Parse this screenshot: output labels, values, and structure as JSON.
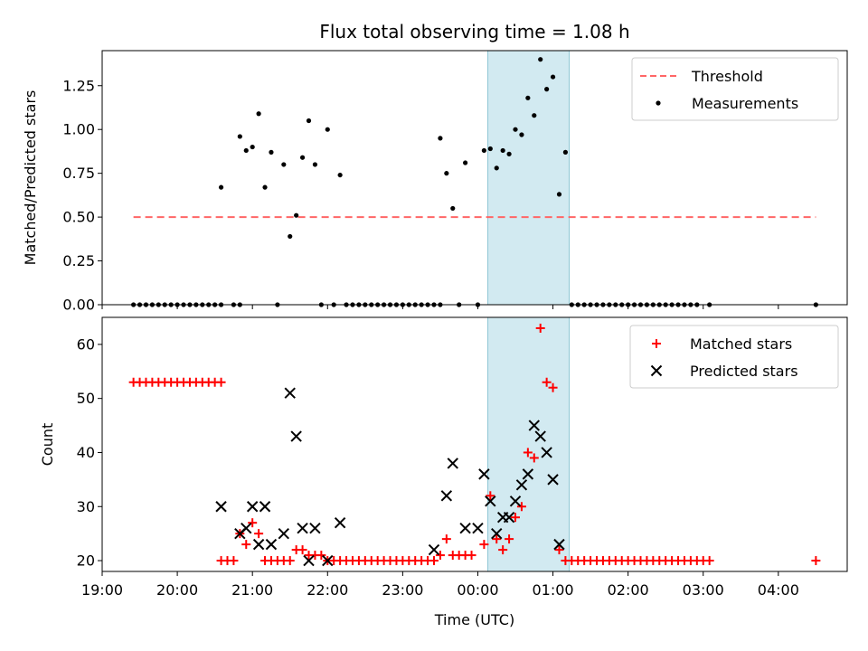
{
  "chart_data": [
    {
      "type": "scatter",
      "title": "Flux total observing time = 1.08 h",
      "xlabel": "",
      "ylabel": "Matched/Predicted stars",
      "xlim": [
        "19:00",
        "04:55"
      ],
      "ylim": [
        0,
        1.45
      ],
      "yticks": [
        "0.00",
        "0.25",
        "0.50",
        "0.75",
        "1.00",
        "1.25"
      ],
      "highlight_span": {
        "x0": "00:08",
        "x1": "01:13",
        "color": "#add8e6"
      },
      "legend": {
        "position": "top-right",
        "entries": [
          "Threshold",
          "Measurements"
        ]
      },
      "threshold": {
        "name": "Threshold",
        "y": 0.5,
        "x0": "19:25",
        "x1": "04:30",
        "color": "#ff6666",
        "style": "dashed"
      },
      "series": [
        {
          "name": "Measurements",
          "marker": "dot",
          "color": "#000000",
          "points": [
            [
              "19:25",
              0
            ],
            [
              "19:30",
              0
            ],
            [
              "19:35",
              0
            ],
            [
              "19:40",
              0
            ],
            [
              "19:45",
              0
            ],
            [
              "19:50",
              0
            ],
            [
              "19:55",
              0
            ],
            [
              "20:00",
              0
            ],
            [
              "20:05",
              0
            ],
            [
              "20:10",
              0
            ],
            [
              "20:15",
              0
            ],
            [
              "20:20",
              0
            ],
            [
              "20:25",
              0
            ],
            [
              "20:30",
              0
            ],
            [
              "20:35",
              0
            ],
            [
              "20:35",
              0.67
            ],
            [
              "20:45",
              0
            ],
            [
              "20:50",
              0
            ],
            [
              "20:50",
              0.96
            ],
            [
              "20:55",
              0.88
            ],
            [
              "21:00",
              0.9
            ],
            [
              "21:05",
              1.09
            ],
            [
              "21:10",
              0.67
            ],
            [
              "21:15",
              0.87
            ],
            [
              "21:20",
              0
            ],
            [
              "21:25",
              0.8
            ],
            [
              "21:30",
              0.39
            ],
            [
              "21:35",
              0.51
            ],
            [
              "21:40",
              0.84
            ],
            [
              "21:45",
              1.05
            ],
            [
              "21:50",
              0.8
            ],
            [
              "21:55",
              0
            ],
            [
              "22:00",
              1.0
            ],
            [
              "22:05",
              0
            ],
            [
              "22:10",
              0.74
            ],
            [
              "22:15",
              0
            ],
            [
              "22:20",
              0
            ],
            [
              "22:25",
              0
            ],
            [
              "22:30",
              0
            ],
            [
              "22:35",
              0
            ],
            [
              "22:40",
              0
            ],
            [
              "22:45",
              0
            ],
            [
              "22:50",
              0
            ],
            [
              "22:55",
              0
            ],
            [
              "23:00",
              0
            ],
            [
              "23:05",
              0
            ],
            [
              "23:10",
              0
            ],
            [
              "23:15",
              0
            ],
            [
              "23:20",
              0
            ],
            [
              "23:25",
              0
            ],
            [
              "23:30",
              0
            ],
            [
              "23:30",
              0.95
            ],
            [
              "23:35",
              0.75
            ],
            [
              "23:40",
              0.55
            ],
            [
              "23:45",
              0
            ],
            [
              "23:50",
              0.81
            ],
            [
              "24:00",
              0
            ],
            [
              "24:05",
              0.88
            ],
            [
              "24:10",
              0.89
            ],
            [
              "24:15",
              0.78
            ],
            [
              "24:20",
              0.88
            ],
            [
              "24:25",
              0.86
            ],
            [
              "24:30",
              1.0
            ],
            [
              "24:35",
              0.97
            ],
            [
              "24:40",
              1.18
            ],
            [
              "24:45",
              1.08
            ],
            [
              "24:50",
              1.4
            ],
            [
              "24:55",
              1.23
            ],
            [
              "25:00",
              1.3
            ],
            [
              "25:05",
              0.63
            ],
            [
              "25:10",
              0.87
            ],
            [
              "25:15",
              0
            ],
            [
              "25:20",
              0
            ],
            [
              "25:25",
              0
            ],
            [
              "25:30",
              0
            ],
            [
              "25:35",
              0
            ],
            [
              "25:40",
              0
            ],
            [
              "25:45",
              0
            ],
            [
              "25:50",
              0
            ],
            [
              "25:55",
              0
            ],
            [
              "26:00",
              0
            ],
            [
              "26:05",
              0
            ],
            [
              "26:10",
              0
            ],
            [
              "26:15",
              0
            ],
            [
              "26:20",
              0
            ],
            [
              "26:25",
              0
            ],
            [
              "26:30",
              0
            ],
            [
              "26:35",
              0
            ],
            [
              "26:40",
              0
            ],
            [
              "26:45",
              0
            ],
            [
              "26:50",
              0
            ],
            [
              "26:55",
              0
            ],
            [
              "27:05",
              0
            ],
            [
              "28:30",
              0
            ]
          ]
        }
      ]
    },
    {
      "type": "scatter",
      "title": "",
      "xlabel": "Time (UTC)",
      "ylabel": "Count",
      "xlim": [
        "19:00",
        "04:55"
      ],
      "xticks": [
        "19:00",
        "20:00",
        "21:00",
        "22:00",
        "23:00",
        "00:00",
        "01:00",
        "02:00",
        "03:00",
        "04:00"
      ],
      "ylim": [
        18,
        65
      ],
      "yticks": [
        "20",
        "30",
        "40",
        "50",
        "60"
      ],
      "highlight_span": {
        "x0": "00:08",
        "x1": "01:13",
        "color": "#add8e6"
      },
      "legend": {
        "position": "top-right",
        "entries": [
          "Matched stars",
          "Predicted stars"
        ]
      },
      "series": [
        {
          "name": "Matched stars",
          "marker": "plus",
          "color": "#ff0000",
          "points": [
            [
              "19:25",
              53
            ],
            [
              "19:30",
              53
            ],
            [
              "19:35",
              53
            ],
            [
              "19:40",
              53
            ],
            [
              "19:45",
              53
            ],
            [
              "19:50",
              53
            ],
            [
              "19:55",
              53
            ],
            [
              "20:00",
              53
            ],
            [
              "20:05",
              53
            ],
            [
              "20:10",
              53
            ],
            [
              "20:15",
              53
            ],
            [
              "20:20",
              53
            ],
            [
              "20:25",
              53
            ],
            [
              "20:30",
              53
            ],
            [
              "20:35",
              53
            ],
            [
              "20:35",
              20
            ],
            [
              "20:40",
              20
            ],
            [
              "20:45",
              20
            ],
            [
              "20:50",
              25
            ],
            [
              "20:55",
              23
            ],
            [
              "21:00",
              27
            ],
            [
              "21:05",
              25
            ],
            [
              "21:10",
              20
            ],
            [
              "21:15",
              20
            ],
            [
              "21:20",
              20
            ],
            [
              "21:25",
              20
            ],
            [
              "21:30",
              20
            ],
            [
              "21:35",
              22
            ],
            [
              "21:40",
              22
            ],
            [
              "21:45",
              21
            ],
            [
              "21:50",
              21
            ],
            [
              "21:55",
              21
            ],
            [
              "22:00",
              20
            ],
            [
              "22:05",
              20
            ],
            [
              "22:10",
              20
            ],
            [
              "22:15",
              20
            ],
            [
              "22:20",
              20
            ],
            [
              "22:25",
              20
            ],
            [
              "22:30",
              20
            ],
            [
              "22:35",
              20
            ],
            [
              "22:40",
              20
            ],
            [
              "22:45",
              20
            ],
            [
              "22:50",
              20
            ],
            [
              "22:55",
              20
            ],
            [
              "23:00",
              20
            ],
            [
              "23:05",
              20
            ],
            [
              "23:10",
              20
            ],
            [
              "23:15",
              20
            ],
            [
              "23:20",
              20
            ],
            [
              "23:25",
              20
            ],
            [
              "23:30",
              21
            ],
            [
              "23:35",
              24
            ],
            [
              "23:40",
              21
            ],
            [
              "23:45",
              21
            ],
            [
              "23:50",
              21
            ],
            [
              "23:55",
              21
            ],
            [
              "24:05",
              23
            ],
            [
              "24:10",
              32
            ],
            [
              "24:15",
              24
            ],
            [
              "24:20",
              22
            ],
            [
              "24:25",
              24
            ],
            [
              "24:30",
              28
            ],
            [
              "24:35",
              30
            ],
            [
              "24:40",
              40
            ],
            [
              "24:45",
              39
            ],
            [
              "24:50",
              63
            ],
            [
              "24:55",
              53
            ],
            [
              "25:00",
              52
            ],
            [
              "25:05",
              22
            ],
            [
              "25:10",
              20
            ],
            [
              "25:15",
              20
            ],
            [
              "25:20",
              20
            ],
            [
              "25:25",
              20
            ],
            [
              "25:30",
              20
            ],
            [
              "25:35",
              20
            ],
            [
              "25:40",
              20
            ],
            [
              "25:45",
              20
            ],
            [
              "25:50",
              20
            ],
            [
              "25:55",
              20
            ],
            [
              "26:00",
              20
            ],
            [
              "26:05",
              20
            ],
            [
              "26:10",
              20
            ],
            [
              "26:15",
              20
            ],
            [
              "26:20",
              20
            ],
            [
              "26:25",
              20
            ],
            [
              "26:30",
              20
            ],
            [
              "26:35",
              20
            ],
            [
              "26:40",
              20
            ],
            [
              "26:45",
              20
            ],
            [
              "26:50",
              20
            ],
            [
              "26:55",
              20
            ],
            [
              "27:00",
              20
            ],
            [
              "27:05",
              20
            ],
            [
              "28:30",
              20
            ]
          ]
        },
        {
          "name": "Predicted stars",
          "marker": "x",
          "color": "#000000",
          "points": [
            [
              "20:35",
              30
            ],
            [
              "20:50",
              25
            ],
            [
              "20:55",
              26
            ],
            [
              "21:00",
              30
            ],
            [
              "21:05",
              23
            ],
            [
              "21:10",
              30
            ],
            [
              "21:15",
              23
            ],
            [
              "21:25",
              25
            ],
            [
              "21:30",
              51
            ],
            [
              "21:35",
              43
            ],
            [
              "21:40",
              26
            ],
            [
              "21:45",
              20
            ],
            [
              "21:50",
              26
            ],
            [
              "22:00",
              20
            ],
            [
              "22:10",
              27
            ],
            [
              "23:25",
              22
            ],
            [
              "23:35",
              32
            ],
            [
              "23:40",
              38
            ],
            [
              "23:50",
              26
            ],
            [
              "24:00",
              26
            ],
            [
              "24:05",
              36
            ],
            [
              "24:10",
              31
            ],
            [
              "24:15",
              25
            ],
            [
              "24:20",
              28
            ],
            [
              "24:25",
              28
            ],
            [
              "24:30",
              31
            ],
            [
              "24:35",
              34
            ],
            [
              "24:40",
              36
            ],
            [
              "24:45",
              45
            ],
            [
              "24:50",
              43
            ],
            [
              "24:55",
              40
            ],
            [
              "25:00",
              35
            ],
            [
              "25:05",
              23
            ]
          ]
        }
      ]
    }
  ]
}
